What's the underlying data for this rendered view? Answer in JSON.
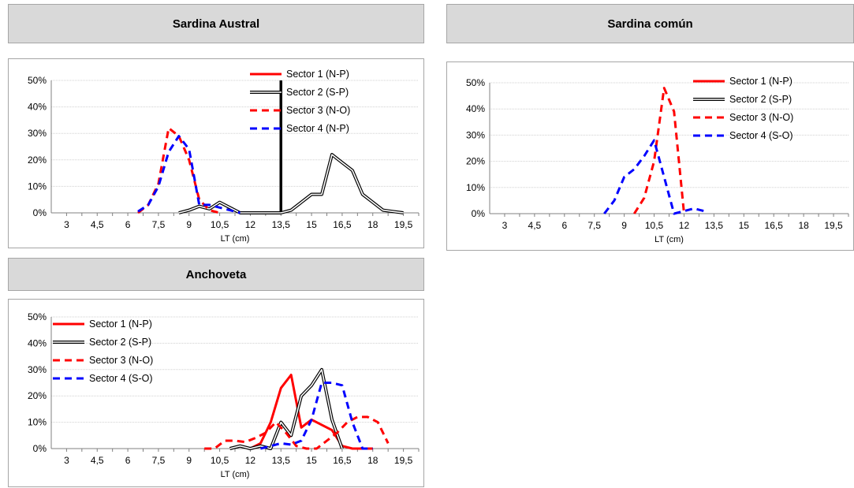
{
  "panels": [
    {
      "title": "Sardina Austral"
    },
    {
      "title": "Sardina común"
    },
    {
      "title": "Anchoveta"
    }
  ],
  "chart_data": [
    {
      "type": "line",
      "title": "Sardina Austral",
      "xlabel": "LT (cm)",
      "ylabel": "",
      "xlim": [
        2.25,
        20.25
      ],
      "ylim": [
        0,
        0.5
      ],
      "xticks": [
        "3",
        "4,5",
        "6",
        "7,5",
        "9",
        "10,5",
        "12",
        "13,5",
        "15",
        "16,5",
        "18",
        "19,5"
      ],
      "xtick_values": [
        3,
        4.5,
        6,
        7.5,
        9,
        10.5,
        12,
        13.5,
        15,
        16.5,
        18,
        19.5
      ],
      "yticks": [
        "0%",
        "10%",
        "20%",
        "30%",
        "40%",
        "50%"
      ],
      "ytick_values": [
        0,
        0.1,
        0.2,
        0.3,
        0.4,
        0.5
      ],
      "grid": "horizontal",
      "legend_position": "top-right",
      "vline": {
        "x": 13.5,
        "ymax": 0.5
      },
      "series": [
        {
          "name": "Sector 1 (N-P)",
          "style": "solid-red",
          "x": [],
          "y": []
        },
        {
          "name": "Sector 2 (S-P)",
          "style": "double-black",
          "x": [
            8.5,
            9,
            9.5,
            10,
            10.5,
            11,
            11.5,
            12,
            12.5,
            13,
            13.5,
            14,
            14.5,
            15,
            15.5,
            16,
            16.5,
            17,
            17.5,
            18,
            18.5,
            19,
            19.5
          ],
          "y": [
            0,
            0.01,
            0.025,
            0.015,
            0.04,
            0.02,
            0,
            0,
            0,
            0,
            0,
            0.01,
            0.04,
            0.07,
            0.07,
            0.22,
            0.19,
            0.16,
            0.07,
            0.04,
            0.01,
            0.005,
            0
          ]
        },
        {
          "name": "Sector 3 (N-O)",
          "style": "dash-red",
          "x": [
            6.5,
            7,
            7.5,
            8,
            8.5,
            9,
            9.5,
            10,
            10.5
          ],
          "y": [
            0,
            0.03,
            0.11,
            0.32,
            0.29,
            0.2,
            0.05,
            0.01,
            0
          ]
        },
        {
          "name": "Sector 4 (N-P)",
          "style": "dash-blue",
          "x": [
            6.5,
            7,
            7.5,
            8,
            8.5,
            9,
            9.5,
            10,
            10.5,
            11,
            11.5
          ],
          "y": [
            0.005,
            0.03,
            0.1,
            0.23,
            0.29,
            0.24,
            0.03,
            0.03,
            0.02,
            0.01,
            0
          ]
        }
      ]
    },
    {
      "type": "line",
      "title": "Sardina común",
      "xlabel": "LT (cm)",
      "ylabel": "",
      "xlim": [
        2.25,
        20.25
      ],
      "ylim": [
        0,
        0.5
      ],
      "xticks": [
        "3",
        "4,5",
        "6",
        "7,5",
        "9",
        "10,5",
        "12",
        "13,5",
        "15",
        "16,5",
        "18",
        "19,5"
      ],
      "xtick_values": [
        3,
        4.5,
        6,
        7.5,
        9,
        10.5,
        12,
        13.5,
        15,
        16.5,
        18,
        19.5
      ],
      "yticks": [
        "0%",
        "10%",
        "20%",
        "30%",
        "40%",
        "50%"
      ],
      "ytick_values": [
        0,
        0.1,
        0.2,
        0.3,
        0.4,
        0.5
      ],
      "grid": "horizontal",
      "legend_position": "top-right",
      "series": [
        {
          "name": "Sector 1 (N-P)",
          "style": "solid-red",
          "x": [],
          "y": []
        },
        {
          "name": "Sector 2 (S-P)",
          "style": "double-black",
          "x": [],
          "y": []
        },
        {
          "name": "Sector 3 (N-O)",
          "style": "dash-red",
          "x": [
            9.5,
            10,
            10.5,
            11,
            11.5,
            12
          ],
          "y": [
            0,
            0.06,
            0.2,
            0.48,
            0.39,
            0
          ]
        },
        {
          "name": "Sector 4 (S-O)",
          "style": "dash-blue",
          "x": [
            8,
            8.5,
            9,
            9.5,
            10,
            10.5,
            11,
            11.5,
            12,
            12.5,
            13
          ],
          "y": [
            0,
            0.05,
            0.14,
            0.17,
            0.22,
            0.28,
            0.14,
            0,
            0.01,
            0.02,
            0.01
          ]
        }
      ]
    },
    {
      "type": "line",
      "title": "Anchoveta",
      "xlabel": "LT (cm)",
      "ylabel": "",
      "xlim": [
        2.25,
        20.25
      ],
      "ylim": [
        0,
        0.5
      ],
      "xticks": [
        "3",
        "4,5",
        "6",
        "7,5",
        "9",
        "10,5",
        "12",
        "13,5",
        "15",
        "16,5",
        "18",
        "19,5"
      ],
      "xtick_values": [
        3,
        4.5,
        6,
        7.5,
        9,
        10.5,
        12,
        13.5,
        15,
        16.5,
        18,
        19.5
      ],
      "yticks": [
        "0%",
        "10%",
        "20%",
        "30%",
        "40%",
        "50%"
      ],
      "ytick_values": [
        0,
        0.1,
        0.2,
        0.3,
        0.4,
        0.5
      ],
      "grid": "horizontal",
      "legend_position": "top-left",
      "series": [
        {
          "name": "Sector 1 (N-P)",
          "style": "solid-red",
          "x": [
            11,
            11.5,
            12,
            12.5,
            13,
            13.5,
            14,
            14.5,
            15,
            15.5,
            16,
            16.5,
            17,
            17.5,
            18
          ],
          "y": [
            0,
            0.01,
            0,
            0.02,
            0.1,
            0.23,
            0.28,
            0.08,
            0.11,
            0.09,
            0.07,
            0.01,
            0,
            0,
            0
          ]
        },
        {
          "name": "Sector 2 (S-P)",
          "style": "double-black",
          "x": [
            11,
            11.5,
            12,
            12.5,
            13,
            13.5,
            14,
            14.5,
            15,
            15.5,
            16,
            16.5
          ],
          "y": [
            0,
            0.01,
            0,
            0.01,
            0,
            0.1,
            0.05,
            0.2,
            0.24,
            0.3,
            0.11,
            0
          ]
        },
        {
          "name": "Sector 3 (N-O)",
          "style": "dash-red",
          "x": [
            9.75,
            10.25,
            10.75,
            11.25,
            11.75,
            12.25,
            12.75,
            13.25,
            13.75,
            14.25,
            14.75,
            15.25,
            15.75,
            16.25,
            16.75,
            17.25,
            17.75,
            18.25,
            18.75
          ],
          "y": [
            0,
            0,
            0.03,
            0.03,
            0.025,
            0.04,
            0.06,
            0.1,
            0.06,
            0.01,
            0,
            0,
            0.03,
            0.06,
            0.1,
            0.12,
            0.12,
            0.1,
            0.02
          ]
        },
        {
          "name": "Sector 4 (S-O)",
          "style": "dash-blue",
          "x": [
            12.5,
            13,
            13.5,
            14,
            14.5,
            15,
            15.5,
            16,
            16.5,
            17,
            17.5,
            18
          ],
          "y": [
            0,
            0.01,
            0.02,
            0.015,
            0.03,
            0.11,
            0.25,
            0.25,
            0.24,
            0.1,
            0,
            0
          ]
        }
      ]
    }
  ]
}
